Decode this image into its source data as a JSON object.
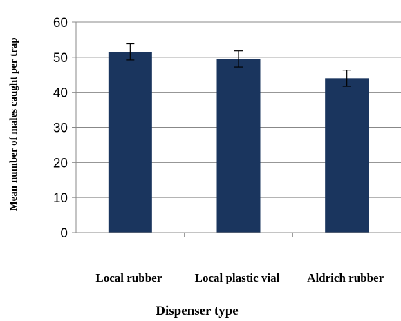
{
  "chart_data": {
    "type": "bar",
    "categories": [
      "Local rubber",
      "Local plastic vial",
      "Aldrich rubber"
    ],
    "values": [
      51.5,
      49.5,
      44
    ],
    "errors": [
      2.3,
      2.3,
      2.3
    ],
    "xlabel": "Dispenser type",
    "ylabel": "Mean number of males caught per trap",
    "ylim": [
      0,
      60
    ],
    "yticks": [
      0,
      10,
      20,
      30,
      40,
      50,
      60
    ],
    "grid": true,
    "bar_color": "#1a355e",
    "grid_color": "#888888"
  }
}
